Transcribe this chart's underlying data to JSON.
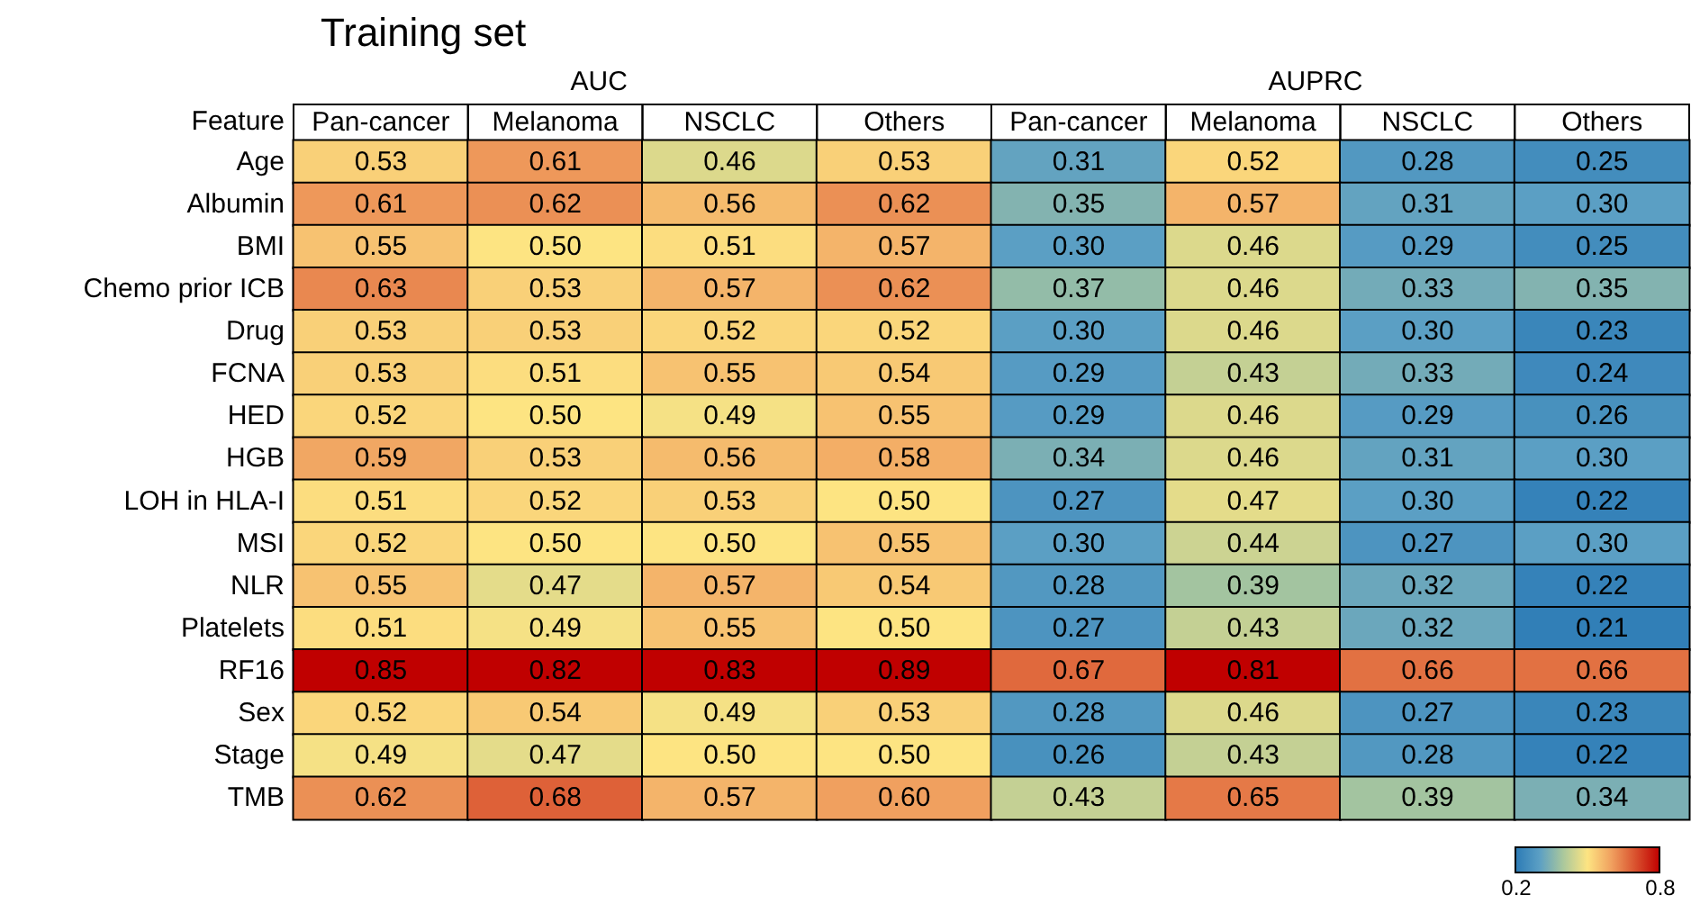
{
  "chart_data": {
    "type": "heatmap",
    "title": "Training set",
    "ylabel": "Feature",
    "annotations": [
      "AUC",
      "AUPRC"
    ],
    "categories": [
      "Pan-cancer",
      "Melanoma",
      "NSCLC",
      "Others",
      "Pan-cancer",
      "Melanoma",
      "NSCLC",
      "Others"
    ],
    "y_categories": [
      "Age",
      "Albumin",
      "BMI",
      "Chemo prior ICB",
      "Drug",
      "FCNA",
      "HED",
      "HGB",
      "LOH in HLA-I",
      "MSI",
      "NLR",
      "Platelets",
      "RF16",
      "Sex",
      "Stage",
      "TMB"
    ],
    "cells": [
      [
        0.53,
        0.61,
        0.46,
        0.53,
        0.31,
        0.52,
        0.28,
        0.25
      ],
      [
        0.61,
        0.62,
        0.56,
        0.62,
        0.35,
        0.57,
        0.31,
        0.3
      ],
      [
        0.55,
        0.5,
        0.51,
        0.57,
        0.3,
        0.46,
        0.29,
        0.25
      ],
      [
        0.63,
        0.53,
        0.57,
        0.62,
        0.37,
        0.46,
        0.33,
        0.35
      ],
      [
        0.53,
        0.53,
        0.52,
        0.52,
        0.3,
        0.46,
        0.3,
        0.23
      ],
      [
        0.53,
        0.51,
        0.55,
        0.54,
        0.29,
        0.43,
        0.33,
        0.24
      ],
      [
        0.52,
        0.5,
        0.49,
        0.55,
        0.29,
        0.46,
        0.29,
        0.26
      ],
      [
        0.59,
        0.53,
        0.56,
        0.58,
        0.34,
        0.46,
        0.31,
        0.3
      ],
      [
        0.51,
        0.52,
        0.53,
        0.5,
        0.27,
        0.47,
        0.3,
        0.22
      ],
      [
        0.52,
        0.5,
        0.5,
        0.55,
        0.3,
        0.44,
        0.27,
        0.3
      ],
      [
        0.55,
        0.47,
        0.57,
        0.54,
        0.28,
        0.39,
        0.32,
        0.22
      ],
      [
        0.51,
        0.49,
        0.55,
        0.5,
        0.27,
        0.43,
        0.32,
        0.21
      ],
      [
        0.85,
        0.82,
        0.83,
        0.89,
        0.67,
        0.81,
        0.66,
        0.66
      ],
      [
        0.52,
        0.54,
        0.49,
        0.53,
        0.28,
        0.46,
        0.27,
        0.23
      ],
      [
        0.49,
        0.47,
        0.5,
        0.5,
        0.26,
        0.43,
        0.28,
        0.22
      ],
      [
        0.62,
        0.68,
        0.57,
        0.6,
        0.43,
        0.65,
        0.39,
        0.34
      ]
    ],
    "cell_labels": [
      [
        "0.53",
        "0.61",
        "0.46",
        "0.53",
        "0.31",
        "0.52",
        "0.28",
        "0.25"
      ],
      [
        "0.61",
        "0.62",
        "0.56",
        "0.62",
        "0.35",
        "0.57",
        "0.31",
        "0.30"
      ],
      [
        "0.55",
        "0.50",
        "0.51",
        "0.57",
        "0.30",
        "0.46",
        "0.29",
        "0.25"
      ],
      [
        "0.63",
        "0.53",
        "0.57",
        "0.62",
        "0.37",
        "0.46",
        "0.33",
        "0.35"
      ],
      [
        "0.53",
        "0.53",
        "0.52",
        "0.52",
        "0.30",
        "0.46",
        "0.30",
        "0.23"
      ],
      [
        "0.53",
        "0.51",
        "0.55",
        "0.54",
        "0.29",
        "0.43",
        "0.33",
        "0.24"
      ],
      [
        "0.52",
        "0.50",
        "0.49",
        "0.55",
        "0.29",
        "0.46",
        "0.29",
        "0.26"
      ],
      [
        "0.59",
        "0.53",
        "0.56",
        "0.58",
        "0.34",
        "0.46",
        "0.31",
        "0.30"
      ],
      [
        "0.51",
        "0.52",
        "0.53",
        "0.50",
        "0.27",
        "0.47",
        "0.30",
        "0.22"
      ],
      [
        "0.52",
        "0.50",
        "0.50",
        "0.55",
        "0.30",
        "0.44",
        "0.27",
        "0.30"
      ],
      [
        "0.55",
        "0.47",
        "0.57",
        "0.54",
        "0.28",
        "0.39",
        "0.32",
        "0.22"
      ],
      [
        "0.51",
        "0.49",
        "0.55",
        "0.50",
        "0.27",
        "0.43",
        "0.32",
        "0.21"
      ],
      [
        "0.85",
        "0.82",
        "0.83",
        "0.89",
        "0.67",
        "0.81",
        "0.66",
        "0.66"
      ],
      [
        "0.52",
        "0.54",
        "0.49",
        "0.53",
        "0.28",
        "0.46",
        "0.27",
        "0.23"
      ],
      [
        "0.49",
        "0.47",
        "0.50",
        "0.50",
        "0.26",
        "0.43",
        "0.28",
        "0.22"
      ],
      [
        "0.62",
        "0.68",
        "0.57",
        "0.60",
        "0.43",
        "0.65",
        "0.39",
        "0.34"
      ]
    ],
    "data_labels": true,
    "clim": [
      0.2,
      0.8
    ],
    "cticks": [
      0.2,
      0.8
    ]
  }
}
